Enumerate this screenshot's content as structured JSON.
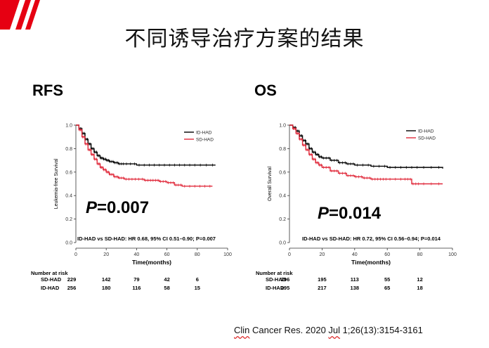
{
  "slide": {
    "title": "不同诱导治疗方案的结果",
    "citation_part1": "Clin",
    "citation_part2": " Cancer Res. 2020 ",
    "citation_part3": "Jul",
    "citation_part4": " 1;26(13):3154-3161",
    "accent_color": "#e60012"
  },
  "chart_data": [
    {
      "type": "line",
      "panel_label": "RFS",
      "ylabel": "Leukemia-free Survival",
      "xlabel": "Time(months)",
      "xlim": [
        0,
        100
      ],
      "ylim": [
        0,
        1.0
      ],
      "xticks": [
        0,
        20,
        40,
        60,
        80,
        100
      ],
      "yticks": [
        0.0,
        0.2,
        0.4,
        0.6,
        0.8,
        1.0
      ],
      "legend_position": "top-right",
      "series": [
        {
          "name": "ID-HAD",
          "color": "#000000",
          "x": [
            0,
            2,
            4,
            6,
            8,
            10,
            12,
            14,
            16,
            18,
            20,
            22,
            25,
            28,
            32,
            40,
            50,
            60,
            70,
            80,
            92
          ],
          "y": [
            1.0,
            0.97,
            0.93,
            0.88,
            0.84,
            0.8,
            0.77,
            0.74,
            0.72,
            0.71,
            0.7,
            0.69,
            0.68,
            0.67,
            0.67,
            0.66,
            0.66,
            0.66,
            0.66,
            0.66,
            0.66
          ]
        },
        {
          "name": "SD-HAD",
          "color": "#e0293a",
          "x": [
            0,
            2,
            4,
            6,
            8,
            10,
            12,
            14,
            16,
            18,
            20,
            22,
            25,
            28,
            32,
            38,
            45,
            50,
            55,
            60,
            65,
            70,
            80,
            90
          ],
          "y": [
            1.0,
            0.96,
            0.9,
            0.84,
            0.79,
            0.75,
            0.71,
            0.67,
            0.64,
            0.62,
            0.6,
            0.58,
            0.56,
            0.55,
            0.54,
            0.54,
            0.53,
            0.53,
            0.52,
            0.51,
            0.49,
            0.48,
            0.48,
            0.48
          ]
        }
      ],
      "p_prefix": "P",
      "p_value": "=0.007",
      "hr_text": "ID-HAD vs SD-HAD: HR 0.68, 95% CI 0.51–0.90; ",
      "hr_p": "P=0.007",
      "risk_title": "Number at risk",
      "risk_rows": [
        {
          "label": "SD-HAD",
          "values": [
            "229",
            "142",
            "79",
            "42",
            "6"
          ]
        },
        {
          "label": "ID-HAD",
          "values": [
            "256",
            "180",
            "116",
            "58",
            "15"
          ]
        }
      ]
    },
    {
      "type": "line",
      "panel_label": "OS",
      "ylabel": "Overall Survival",
      "xlabel": "Time(months)",
      "xlim": [
        0,
        100
      ],
      "ylim": [
        0,
        1.0
      ],
      "xticks": [
        0,
        20,
        40,
        60,
        80,
        100
      ],
      "yticks": [
        0.0,
        0.2,
        0.4,
        0.6,
        0.8,
        1.0
      ],
      "legend_position": "top-right",
      "series": [
        {
          "name": "ID-HAD",
          "color": "#000000",
          "x": [
            0,
            2,
            4,
            6,
            8,
            10,
            12,
            14,
            16,
            18,
            20,
            25,
            30,
            35,
            40,
            50,
            60,
            70,
            80,
            94
          ],
          "y": [
            1.0,
            0.98,
            0.95,
            0.91,
            0.87,
            0.84,
            0.8,
            0.77,
            0.75,
            0.73,
            0.72,
            0.7,
            0.68,
            0.67,
            0.66,
            0.65,
            0.64,
            0.64,
            0.64,
            0.63
          ]
        },
        {
          "name": "SD-HAD",
          "color": "#e0293a",
          "x": [
            0,
            2,
            4,
            6,
            8,
            10,
            12,
            14,
            16,
            18,
            20,
            25,
            30,
            35,
            40,
            45,
            50,
            55,
            60,
            70,
            75,
            80,
            94
          ],
          "y": [
            1.0,
            0.97,
            0.93,
            0.88,
            0.83,
            0.79,
            0.75,
            0.71,
            0.68,
            0.66,
            0.64,
            0.61,
            0.59,
            0.57,
            0.56,
            0.55,
            0.54,
            0.54,
            0.54,
            0.54,
            0.5,
            0.5,
            0.5
          ]
        }
      ],
      "p_prefix": "P",
      "p_value": "=0.014",
      "hr_text": "ID-HAD vs SD-HAD: HR 0.72, 95% CI 0.56–0.94; ",
      "hr_p": "P=0.014",
      "risk_title": "Number at risk",
      "risk_rows": [
        {
          "label": "SD-HAD",
          "values": [
            "296",
            "195",
            "113",
            "55",
            "12"
          ]
        },
        {
          "label": "ID-HAD",
          "values": [
            "295",
            "217",
            "138",
            "65",
            "18"
          ]
        }
      ]
    }
  ]
}
